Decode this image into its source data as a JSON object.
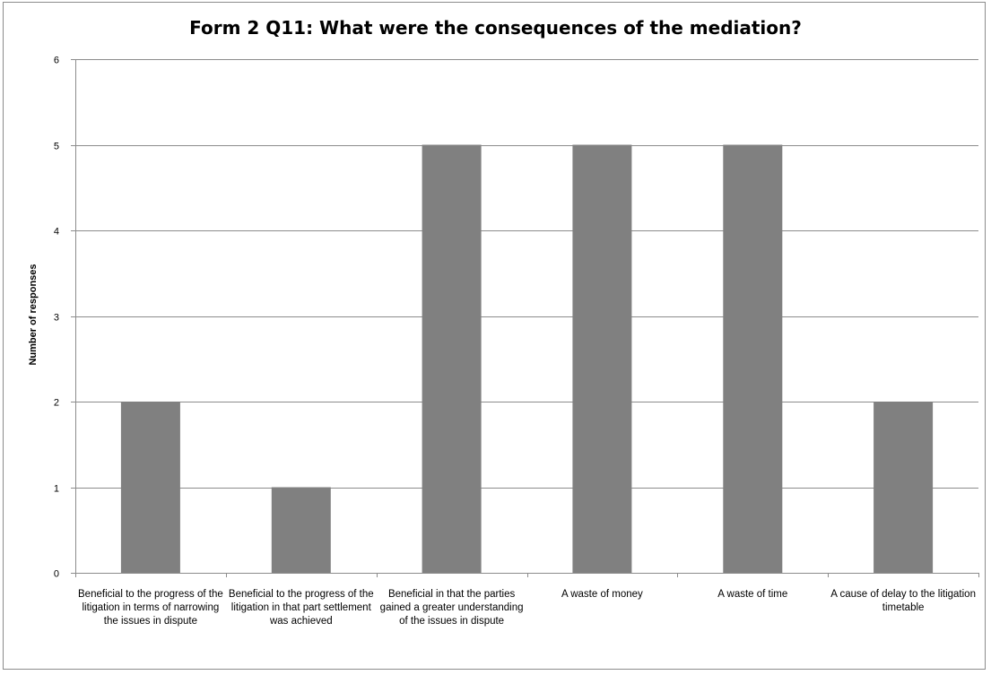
{
  "chart_data": {
    "type": "bar",
    "title": "Form 2 Q11:  What were the consequences of the mediation?",
    "xlabel": "",
    "ylabel": "Number of responses",
    "ylim": [
      0,
      6
    ],
    "yticks": [
      0,
      1,
      2,
      3,
      4,
      5,
      6
    ],
    "grid": true,
    "legend": "none",
    "bar_color": "#808080",
    "categories": [
      "Beneficial to the progress of the litigation in terms of narrowing the issues in dispute",
      "Beneficial to the progress of the litigation in that part settlement was achieved",
      "Beneficial in that the parties gained a greater understanding of the issues in dispute",
      "A waste of money",
      "A waste of time",
      "A cause of delay to the litigation timetable"
    ],
    "values": [
      2,
      1,
      5,
      5,
      5,
      2
    ]
  }
}
